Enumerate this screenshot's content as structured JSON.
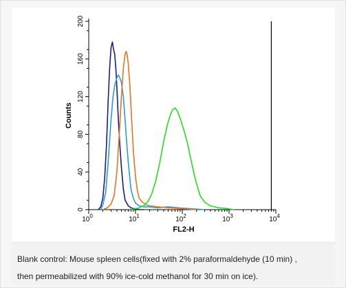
{
  "chart_data": {
    "type": "line",
    "title": "",
    "xlabel": "FL2-H",
    "ylabel": "Counts",
    "x_scale": "log",
    "xlim": [
      1,
      10000
    ],
    "ylim": [
      0,
      200
    ],
    "x_ticks": [
      {
        "base": "10",
        "exp": "0"
      },
      {
        "base": "10",
        "exp": "1"
      },
      {
        "base": "10",
        "exp": "2"
      },
      {
        "base": "10",
        "exp": "3"
      },
      {
        "base": "10",
        "exp": "4"
      }
    ],
    "y_ticks": [
      "0",
      "40",
      "80",
      "120",
      "160",
      "200"
    ],
    "y_tick_values": [
      0,
      40,
      80,
      120,
      160,
      200
    ],
    "grid": false,
    "legend": "none",
    "marker_line_x": 8000,
    "series": [
      {
        "color": "#1a1a8c",
        "x": [
          1.6,
          1.8,
          2.0,
          2.2,
          2.4,
          2.6,
          2.8,
          3.0,
          3.2,
          3.4,
          3.6,
          3.8,
          4.0,
          4.3,
          4.6,
          5.0,
          5.5,
          6.0,
          7.0,
          8.0,
          9.0,
          10,
          12,
          15
        ],
        "y": [
          0,
          3,
          12,
          35,
          70,
          115,
          150,
          172,
          178,
          170,
          165,
          150,
          130,
          95,
          70,
          45,
          22,
          10,
          4,
          2,
          1,
          1,
          0,
          0
        ]
      },
      {
        "color": "#2a9ad8",
        "x": [
          1.8,
          2.0,
          2.3,
          2.6,
          3.0,
          3.3,
          3.6,
          4.0,
          4.3,
          4.6,
          5.0,
          5.5,
          6.0,
          6.5,
          7.0,
          8.0,
          9.0,
          10,
          12,
          15,
          20,
          30,
          50,
          80,
          150,
          300
        ],
        "y": [
          0,
          5,
          18,
          50,
          95,
          120,
          132,
          140,
          143,
          140,
          135,
          120,
          95,
          70,
          50,
          22,
          12,
          7,
          4,
          3,
          3,
          2,
          3,
          2,
          1,
          0
        ]
      },
      {
        "color": "#e8731d",
        "x": [
          2.0,
          2.5,
          3.0,
          3.5,
          4.0,
          4.5,
          5.0,
          5.5,
          6.0,
          6.3,
          6.6,
          7.0,
          7.5,
          8.0,
          8.5,
          9.0,
          10,
          11,
          12,
          14,
          17,
          20,
          30,
          50,
          100,
          200
        ],
        "y": [
          0,
          2,
          6,
          15,
          40,
          80,
          120,
          150,
          165,
          168,
          165,
          155,
          135,
          110,
          85,
          62,
          35,
          20,
          12,
          8,
          5,
          4,
          3,
          2,
          1,
          0
        ]
      },
      {
        "color": "#22dd22",
        "x": [
          8,
          10,
          12,
          15,
          18,
          22,
          27,
          33,
          40,
          48,
          55,
          62,
          70,
          80,
          90,
          100,
          115,
          130,
          150,
          175,
          200,
          240,
          300,
          400,
          600,
          900,
          1300
        ],
        "y": [
          0,
          1,
          2,
          4,
          8,
          16,
          30,
          50,
          72,
          90,
          100,
          106,
          108,
          104,
          97,
          90,
          80,
          70,
          55,
          40,
          28,
          15,
          8,
          4,
          2,
          1,
          0
        ]
      }
    ]
  },
  "caption": {
    "line1": "Blank control: Mouse spleen cells(fixed with 2% paraformaldehyde (10 min) ,",
    "line2": "then permeabilized with 90% ice-cold methanol for 30 min on ice)."
  }
}
